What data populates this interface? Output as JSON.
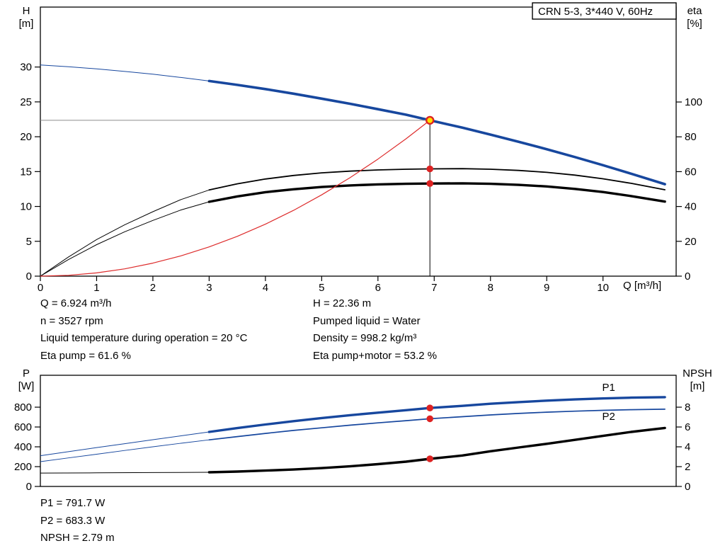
{
  "info_top": {
    "left": [
      "Q = 6.924 m³/h",
      "n = 3527 rpm",
      "Liquid temperature during operation = 20 °C",
      "Eta pump = 61.6 %"
    ],
    "right": [
      "H = 22.36 m",
      "Pumped liquid = Water",
      "Density = 998.2 kg/m³",
      "Eta pump+motor = 53.2 %"
    ]
  },
  "info_bottom": [
    "P1 = 791.7 W",
    "P2 = 683.3 W",
    "NPSH = 2.79 m"
  ],
  "chart_data": [
    {
      "type": "line",
      "title": "CRN 5-3, 3*440 V, 60Hz",
      "x_label": "Q [m³/h]",
      "y_left_label": [
        "H",
        "[m]"
      ],
      "y_right_label": [
        "eta",
        "[%]"
      ],
      "x_range": [
        0,
        11.3
      ],
      "x_ticks": [
        0,
        1,
        2,
        3,
        4,
        5,
        6,
        7,
        8,
        9,
        10
      ],
      "y_left_range": [
        0,
        38.6
      ],
      "y_left_ticks": [
        0,
        5,
        10,
        15,
        20,
        25,
        30
      ],
      "y_right_range": [
        0,
        154.5
      ],
      "y_right_ticks": [
        0,
        20,
        40,
        60,
        80,
        100
      ],
      "grid": false,
      "series": [
        {
          "name": "head-curve",
          "legend": "H (pump head)",
          "color": "#17479e",
          "axis": "left",
          "width": 3.6,
          "thin_until": 3,
          "thin_width": 1,
          "points": [
            [
              0,
              30.3
            ],
            [
              0.5,
              30.05
            ],
            [
              1,
              29.73
            ],
            [
              1.5,
              29.37
            ],
            [
              2,
              28.97
            ],
            [
              2.5,
              28.5
            ],
            [
              3,
              28
            ],
            [
              3.5,
              27.44
            ],
            [
              4,
              26.84
            ],
            [
              4.5,
              26.18
            ],
            [
              5,
              25.47
            ],
            [
              5.5,
              24.73
            ],
            [
              6,
              23.95
            ],
            [
              6.5,
              23.16
            ],
            [
              6.924,
              22.36
            ],
            [
              7.5,
              21.3
            ],
            [
              8,
              20.31
            ],
            [
              8.5,
              19.28
            ],
            [
              9,
              18.21
            ],
            [
              9.5,
              17.09
            ],
            [
              10,
              15.92
            ],
            [
              10.5,
              14.7
            ],
            [
              11.1,
              13.2
            ]
          ]
        },
        {
          "name": "eta-pump-curve",
          "legend": "Eta pump",
          "color": "#000000",
          "axis": "right",
          "width": 1.8,
          "thin_until": 3,
          "thin_width": 1,
          "points": [
            [
              0,
              0
            ],
            [
              0.5,
              11
            ],
            [
              1,
              21
            ],
            [
              1.5,
              29.5
            ],
            [
              2,
              37
            ],
            [
              2.5,
              44
            ],
            [
              3,
              49.5
            ],
            [
              3.5,
              53
            ],
            [
              4,
              55.8
            ],
            [
              4.5,
              57.8
            ],
            [
              5,
              59.3
            ],
            [
              5.5,
              60.3
            ],
            [
              6,
              61
            ],
            [
              6.5,
              61.4
            ],
            [
              6.924,
              61.6
            ],
            [
              7.5,
              61.7
            ],
            [
              8,
              61.4
            ],
            [
              8.5,
              60.7
            ],
            [
              9,
              59.6
            ],
            [
              9.5,
              58
            ],
            [
              10,
              55.9
            ],
            [
              10.5,
              53.3
            ],
            [
              11.1,
              49.6
            ]
          ]
        },
        {
          "name": "eta-pump-motor-curve",
          "legend": "Eta pump+motor",
          "color": "#000000",
          "axis": "right",
          "width": 3.4,
          "thin_until": 3,
          "thin_width": 1,
          "points": [
            [
              0,
              0
            ],
            [
              0.5,
              9.5
            ],
            [
              1,
              18.1
            ],
            [
              1.5,
              25.5
            ],
            [
              2,
              32
            ],
            [
              2.5,
              38
            ],
            [
              3,
              42.7
            ],
            [
              3.5,
              45.8
            ],
            [
              4,
              48.2
            ],
            [
              4.5,
              49.9
            ],
            [
              5,
              51.2
            ],
            [
              5.5,
              52.1
            ],
            [
              6,
              52.7
            ],
            [
              6.5,
              53
            ],
            [
              6.924,
              53.2
            ],
            [
              7.5,
              53.3
            ],
            [
              8,
              53
            ],
            [
              8.5,
              52.4
            ],
            [
              9,
              51.5
            ],
            [
              9.5,
              50.1
            ],
            [
              10,
              48.3
            ],
            [
              10.5,
              46
            ],
            [
              11.1,
              42.8
            ]
          ]
        },
        {
          "name": "system-curve",
          "legend": "System curve",
          "color": "#dd2c2c",
          "axis": "left",
          "width": 1.2,
          "points": [
            [
              0,
              0
            ],
            [
              0.5,
              0.12
            ],
            [
              1,
              0.47
            ],
            [
              1.5,
              1.05
            ],
            [
              2,
              1.87
            ],
            [
              2.5,
              2.92
            ],
            [
              3,
              4.2
            ],
            [
              3.5,
              5.71
            ],
            [
              4,
              7.46
            ],
            [
              4.5,
              9.44
            ],
            [
              5,
              11.66
            ],
            [
              5.5,
              14.11
            ],
            [
              6,
              16.79
            ],
            [
              6.5,
              19.71
            ],
            [
              6.924,
              22.36
            ]
          ]
        }
      ],
      "guide_lines": [
        {
          "name": "duty-vertical-line",
          "color": "#000000",
          "width": 1,
          "axis": "left",
          "points": [
            [
              6.924,
              0
            ],
            [
              6.924,
              22.36
            ]
          ]
        },
        {
          "name": "duty-horizontal-line",
          "color": "#8c8c8c",
          "width": 1,
          "axis": "left",
          "points": [
            [
              0,
              22.36
            ],
            [
              6.924,
              22.36
            ]
          ]
        }
      ],
      "markers": [
        {
          "name": "duty-point",
          "q": 6.924,
          "val": 22.36,
          "axis": "left",
          "r": 5,
          "fill": "#ffdf00",
          "stroke": "#dd2222",
          "stroke_width": 2.4
        },
        {
          "name": "eta-pump-point",
          "q": 6.924,
          "val": 61.6,
          "axis": "right",
          "r": 4.8,
          "fill": "#dd2222"
        },
        {
          "name": "eta-pump-motor-point",
          "q": 6.924,
          "val": 53.2,
          "axis": "right",
          "r": 4.8,
          "fill": "#dd2222"
        }
      ]
    },
    {
      "type": "line",
      "x_range": [
        0,
        11.3
      ],
      "x_ticks": [],
      "y_left_label": [
        "P",
        "[W]"
      ],
      "y_right_label": [
        "NPSH",
        "[m]"
      ],
      "y_left_range": [
        0,
        1122
      ],
      "y_left_ticks": [
        0,
        200,
        400,
        600,
        800
      ],
      "y_right_range": [
        0,
        11.22
      ],
      "y_right_ticks": [
        0,
        2,
        4,
        6,
        8
      ],
      "grid": false,
      "series": [
        {
          "name": "p1-curve",
          "legend": "P1",
          "color": "#17479e",
          "axis": "left",
          "width": 3.4,
          "thin_until": 3,
          "thin_width": 1,
          "points": [
            [
              0,
              310
            ],
            [
              0.5,
              351
            ],
            [
              1,
              392
            ],
            [
              1.5,
              432
            ],
            [
              2,
              472
            ],
            [
              2.5,
              511
            ],
            [
              3,
              550
            ],
            [
              3.5,
              589
            ],
            [
              4,
              625
            ],
            [
              4.5,
              659
            ],
            [
              5,
              690
            ],
            [
              5.5,
              719
            ],
            [
              6,
              745
            ],
            [
              6.5,
              770
            ],
            [
              6.924,
              791.7
            ],
            [
              7.5,
              813
            ],
            [
              8,
              835
            ],
            [
              8.5,
              851
            ],
            [
              9,
              866
            ],
            [
              9.5,
              878
            ],
            [
              10,
              888
            ],
            [
              10.5,
              896
            ],
            [
              11.1,
              901
            ]
          ]
        },
        {
          "name": "p2-curve",
          "legend": "P2",
          "color": "#17479e",
          "axis": "left",
          "width": 1.7,
          "thin_until": 3,
          "thin_width": 0.9,
          "points": [
            [
              0,
              250
            ],
            [
              0.5,
              288
            ],
            [
              1,
              325
            ],
            [
              1.5,
              363
            ],
            [
              2,
              400
            ],
            [
              2.5,
              436
            ],
            [
              3,
              470
            ],
            [
              3.5,
              503
            ],
            [
              4,
              535
            ],
            [
              4.5,
              565
            ],
            [
              5,
              592
            ],
            [
              5.5,
              618
            ],
            [
              6,
              642
            ],
            [
              6.5,
              664
            ],
            [
              6.924,
              683.3
            ],
            [
              7.5,
              704
            ],
            [
              8,
              722
            ],
            [
              8.5,
              737
            ],
            [
              9,
              750
            ],
            [
              9.5,
              760
            ],
            [
              10,
              768
            ],
            [
              10.5,
              775
            ],
            [
              11.1,
              780
            ]
          ]
        },
        {
          "name": "npsh-curve",
          "legend": "NPSH",
          "color": "#000000",
          "axis": "right",
          "width": 3.4,
          "thin_until": 3,
          "thin_width": 1,
          "points": [
            [
              0,
              1.35
            ],
            [
              1,
              1.37
            ],
            [
              2,
              1.4
            ],
            [
              3,
              1.43
            ],
            [
              3.5,
              1.5
            ],
            [
              4,
              1.6
            ],
            [
              4.5,
              1.71
            ],
            [
              5,
              1.85
            ],
            [
              5.5,
              2.03
            ],
            [
              6,
              2.25
            ],
            [
              6.5,
              2.5
            ],
            [
              6.924,
              2.79
            ],
            [
              7.5,
              3.12
            ],
            [
              8,
              3.55
            ],
            [
              8.5,
              3.93
            ],
            [
              9,
              4.3
            ],
            [
              9.5,
              4.7
            ],
            [
              10,
              5.1
            ],
            [
              10.5,
              5.5
            ],
            [
              11.1,
              5.9
            ]
          ]
        }
      ],
      "guide_lines": [],
      "markers": [
        {
          "name": "p1-point",
          "q": 6.924,
          "val": 791.7,
          "axis": "left",
          "r": 4.8,
          "fill": "#dd2222"
        },
        {
          "name": "p2-point",
          "q": 6.924,
          "val": 683.3,
          "axis": "left",
          "r": 4.8,
          "fill": "#dd2222"
        },
        {
          "name": "npsh-point",
          "q": 6.924,
          "val": 2.79,
          "axis": "right",
          "r": 4.8,
          "fill": "#dd2222"
        }
      ],
      "curve_labels": [
        {
          "name": "p1-label",
          "text": "P1",
          "q": 10.1,
          "val": 965,
          "axis": "left",
          "color": "#17479e"
        },
        {
          "name": "p2-label",
          "text": "P2",
          "q": 10.1,
          "val": 672,
          "axis": "left",
          "color": "#17479e"
        }
      ]
    }
  ]
}
